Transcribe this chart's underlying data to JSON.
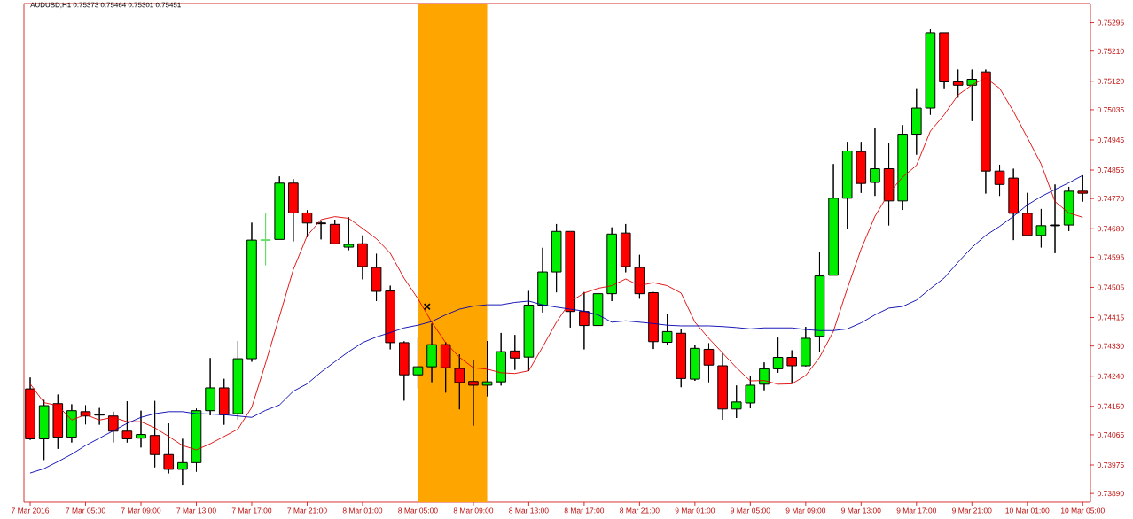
{
  "chart_data": {
    "type": "candlestick",
    "title": "AUDUSD,H1  0.75373 0.75464 0.75301 0.75451",
    "categories": [
      "7 Mar 2016",
      null,
      null,
      null,
      "7 Mar 05:00",
      null,
      null,
      null,
      "7 Mar 09:00",
      null,
      null,
      null,
      "7 Mar 13:00",
      null,
      null,
      null,
      "7 Mar 17:00",
      null,
      null,
      null,
      "7 Mar 21:00",
      null,
      null,
      null,
      "8 Mar 01:00",
      null,
      null,
      null,
      "8 Mar 05:00",
      null,
      null,
      null,
      "8 Mar 09:00",
      null,
      null,
      null,
      "8 Mar 13:00",
      null,
      null,
      null,
      "8 Mar 17:00",
      null,
      null,
      null,
      "8 Mar 21:00",
      null,
      null,
      null,
      "9 Mar 01:00",
      null,
      null,
      null,
      "9 Mar 05:00",
      null,
      null,
      null,
      "9 Mar 09:00",
      null,
      null,
      null,
      "9 Mar 13:00",
      null,
      null,
      null,
      "9 Mar 17:00",
      null,
      null,
      null,
      "9 Mar 21:00",
      null,
      null,
      null,
      "10 Mar 01:00",
      null,
      null,
      null,
      "10 Mar 05:00"
    ],
    "ohlc": [
      [
        0.74202,
        0.74236,
        0.7405,
        0.74053
      ],
      [
        0.74053,
        0.74169,
        0.7399,
        0.74152
      ],
      [
        0.74158,
        0.74185,
        0.74023,
        0.74058
      ],
      [
        0.74058,
        0.74156,
        0.74042,
        0.74137
      ],
      [
        0.74134,
        0.74153,
        0.74096,
        0.74121
      ],
      [
        0.74125,
        0.74145,
        0.74095,
        0.74125
      ],
      [
        0.74121,
        0.74134,
        0.74042,
        0.74076
      ],
      [
        0.74076,
        0.74165,
        0.74042,
        0.74053
      ],
      [
        0.74055,
        0.74137,
        0.74027,
        0.74066
      ],
      [
        0.74063,
        0.74166,
        0.73968,
        0.74006
      ],
      [
        0.74006,
        0.74099,
        0.7395,
        0.73962
      ],
      [
        0.73962,
        0.74053,
        0.73914,
        0.73982
      ],
      [
        0.73982,
        0.74143,
        0.73955,
        0.74137
      ],
      [
        0.74137,
        0.74294,
        0.74123,
        0.74205
      ],
      [
        0.74205,
        0.74232,
        0.74095,
        0.74125
      ],
      [
        0.74128,
        0.74345,
        0.7411,
        0.74292
      ],
      [
        0.74292,
        0.74698,
        0.74283,
        0.74646
      ],
      [
        0.74646,
        0.74727,
        0.74571,
        0.74646
      ],
      [
        0.74648,
        0.74836,
        0.74648,
        0.74816
      ],
      [
        0.74816,
        0.74828,
        0.74642,
        0.74727
      ],
      [
        0.74727,
        0.74735,
        0.74655,
        0.74697
      ],
      [
        0.74696,
        0.74704,
        0.74648,
        0.74696
      ],
      [
        0.74693,
        0.74707,
        0.74633,
        0.74635
      ],
      [
        0.74625,
        0.74714,
        0.74616,
        0.74633
      ],
      [
        0.74635,
        0.7466,
        0.74529,
        0.74567
      ],
      [
        0.74564,
        0.74605,
        0.74464,
        0.74493
      ],
      [
        0.74494,
        0.7451,
        0.7432,
        0.7434
      ],
      [
        0.7434,
        0.74344,
        0.74167,
        0.74244
      ],
      [
        0.74244,
        0.74355,
        0.74203,
        0.74268
      ],
      [
        0.74268,
        0.74397,
        0.74222,
        0.74334
      ],
      [
        0.74334,
        0.74342,
        0.74191,
        0.74265
      ],
      [
        0.74263,
        0.74305,
        0.74141,
        0.74221
      ],
      [
        0.74224,
        0.74287,
        0.74092,
        0.74213
      ],
      [
        0.74213,
        0.74345,
        0.7418,
        0.74223
      ],
      [
        0.74223,
        0.74369,
        0.74212,
        0.74313
      ],
      [
        0.74315,
        0.74363,
        0.74259,
        0.74294
      ],
      [
        0.74297,
        0.74494,
        0.74255,
        0.74452
      ],
      [
        0.74452,
        0.74623,
        0.7443,
        0.74551
      ],
      [
        0.74551,
        0.74694,
        0.7449,
        0.74672
      ],
      [
        0.74672,
        0.74672,
        0.74385,
        0.74433
      ],
      [
        0.74433,
        0.74491,
        0.7432,
        0.74391
      ],
      [
        0.74391,
        0.74526,
        0.74381,
        0.74486
      ],
      [
        0.74486,
        0.74684,
        0.74464,
        0.74664
      ],
      [
        0.74667,
        0.74694,
        0.7455,
        0.74567
      ],
      [
        0.74564,
        0.74602,
        0.74471,
        0.74486
      ],
      [
        0.74489,
        0.74491,
        0.74321,
        0.74343
      ],
      [
        0.74341,
        0.74426,
        0.74333,
        0.74373
      ],
      [
        0.74368,
        0.74381,
        0.74207,
        0.74233
      ],
      [
        0.74231,
        0.74334,
        0.74226,
        0.74323
      ],
      [
        0.7432,
        0.74338,
        0.74222,
        0.74273
      ],
      [
        0.74271,
        0.74309,
        0.7411,
        0.74142
      ],
      [
        0.74142,
        0.74212,
        0.74115,
        0.74163
      ],
      [
        0.7416,
        0.7424,
        0.74144,
        0.74213
      ],
      [
        0.74216,
        0.74281,
        0.74198,
        0.74262
      ],
      [
        0.74262,
        0.74355,
        0.7425,
        0.74296
      ],
      [
        0.74296,
        0.74317,
        0.74219,
        0.74271
      ],
      [
        0.74271,
        0.74387,
        0.74269,
        0.74353
      ],
      [
        0.74359,
        0.74611,
        0.74313,
        0.74539
      ],
      [
        0.74541,
        0.74873,
        0.74541,
        0.74771
      ],
      [
        0.74771,
        0.74939,
        0.74678,
        0.74912
      ],
      [
        0.7491,
        0.74939,
        0.74787,
        0.74815
      ],
      [
        0.74818,
        0.74981,
        0.74778,
        0.74859
      ],
      [
        0.74859,
        0.74934,
        0.7469,
        0.74763
      ],
      [
        0.74763,
        0.74989,
        0.74736,
        0.74962
      ],
      [
        0.74962,
        0.75099,
        0.74901,
        0.7504
      ],
      [
        0.7504,
        0.75275,
        0.7502,
        0.75265
      ],
      [
        0.75265,
        0.75265,
        0.75099,
        0.75118
      ],
      [
        0.75118,
        0.75155,
        0.75071,
        0.75108
      ],
      [
        0.75108,
        0.75155,
        0.75001,
        0.75126
      ],
      [
        0.75148,
        0.75155,
        0.74785,
        0.74852
      ],
      [
        0.74852,
        0.74871,
        0.74778,
        0.74812
      ],
      [
        0.74831,
        0.74859,
        0.74646,
        0.74726
      ],
      [
        0.74726,
        0.74787,
        0.7466,
        0.7466
      ],
      [
        0.7466,
        0.74739,
        0.74624,
        0.74689
      ],
      [
        0.7469,
        0.74812,
        0.74607,
        0.7469
      ],
      [
        0.74691,
        0.74805,
        0.74673,
        0.74792
      ],
      [
        0.74792,
        0.74839,
        0.74761,
        0.74786
      ]
    ],
    "colors": [
      "#ff0000",
      "#00ee00",
      "#ff0000",
      "#00ee00",
      "#ff0000",
      "#000000",
      "#ff0000",
      "#ff0000",
      "#00ee00",
      "#ff0000",
      "#ff0000",
      "#00ee00",
      "#00ee00",
      "#00ee00",
      "#ff0000",
      "#00ee00",
      "#00ee00",
      "#66dd66",
      "#00ee00",
      "#ff0000",
      "#ff0000",
      "#000000",
      "#ff0000",
      "#00ee00",
      "#ff0000",
      "#ff0000",
      "#ff0000",
      "#ff0000",
      "#00ee00",
      "#00ee00",
      "#ff0000",
      "#ff0000",
      "#ff0000",
      "#00ee00",
      "#00ee00",
      "#ff0000",
      "#00ee00",
      "#00ee00",
      "#00ee00",
      "#ff0000",
      "#ff0000",
      "#00ee00",
      "#00ee00",
      "#ff0000",
      "#ff0000",
      "#ff0000",
      "#00ee00",
      "#ff0000",
      "#00ee00",
      "#ff0000",
      "#ff0000",
      "#00ee00",
      "#00ee00",
      "#00ee00",
      "#00ee00",
      "#ff0000",
      "#00ee00",
      "#00ee00",
      "#00ee00",
      "#00ee00",
      "#ff0000",
      "#00ee00",
      "#ff0000",
      "#00ee00",
      "#00ee00",
      "#00ee00",
      "#ff0000",
      "#ff0000",
      "#00ee00",
      "#ff0000",
      "#ff0000",
      "#ff0000",
      "#ff0000",
      "#00ee00",
      "#000000",
      "#00ee00",
      "#ff0000"
    ],
    "series": [
      {
        "type": "line",
        "color": "#e00000",
        "values": [
          0.74217,
          0.74161,
          0.74152,
          0.74109,
          0.74125,
          0.74109,
          0.74117,
          0.74104,
          0.74104,
          0.74086,
          0.7406,
          0.74033,
          0.7402,
          0.74038,
          0.7406,
          0.74082,
          0.74147,
          0.74279,
          0.74418,
          0.74558,
          0.74659,
          0.74707,
          0.74716,
          0.74711,
          0.74681,
          0.7465,
          0.74607,
          0.74532,
          0.74471,
          0.74401,
          0.7434,
          0.74296,
          0.74265,
          0.74261,
          0.7425,
          0.74248,
          0.74256,
          0.74327,
          0.74401,
          0.74462,
          0.74488,
          0.74502,
          0.7451,
          0.7453,
          0.7451,
          0.74519,
          0.7451,
          0.74488,
          0.74401,
          0.74353,
          0.74309,
          0.74265,
          0.74226,
          0.74227,
          0.74216,
          0.74217,
          0.74242,
          0.74296,
          0.74374,
          0.74501,
          0.74619,
          0.74717,
          0.74786,
          0.74834,
          0.74869,
          0.74971,
          0.7502,
          0.75079,
          0.75109,
          0.7513,
          0.75099,
          0.7503,
          0.74952,
          0.74873,
          0.74761,
          0.74727,
          0.74714
        ]
      },
      {
        "type": "line",
        "color": "#0000b0",
        "values": [
          0.73951,
          0.73964,
          0.73985,
          0.74007,
          0.74033,
          0.74055,
          0.74077,
          0.74099,
          0.74117,
          0.74128,
          0.74134,
          0.74134,
          0.74128,
          0.74127,
          0.74125,
          0.74121,
          0.74117,
          0.74138,
          0.74154,
          0.74195,
          0.74217,
          0.74252,
          0.74283,
          0.74313,
          0.7434,
          0.74357,
          0.7437,
          0.74384,
          0.74392,
          0.74403,
          0.74423,
          0.7444,
          0.74449,
          0.74453,
          0.74453,
          0.7446,
          0.74464,
          0.74453,
          0.74446,
          0.7444,
          0.74434,
          0.74423,
          0.74401,
          0.74405,
          0.74401,
          0.74397,
          0.74392,
          0.7439,
          0.7439,
          0.7439,
          0.74388,
          0.74385,
          0.74381,
          0.74384,
          0.74384,
          0.74384,
          0.74379,
          0.74376,
          0.74376,
          0.74381,
          0.74399,
          0.74423,
          0.74443,
          0.74448,
          0.74467,
          0.74501,
          0.74533,
          0.7458,
          0.74624,
          0.7466,
          0.74687,
          0.74717,
          0.74751,
          0.74776,
          0.74797,
          0.74817,
          0.74839
        ]
      }
    ],
    "ylim": [
      0.73864,
      0.75352
    ],
    "yticks": [
      {
        "value": 0.75295,
        "label": "0.75295"
      },
      {
        "value": 0.7521,
        "label": "0.75210"
      },
      {
        "value": 0.7512,
        "label": "0.75120"
      },
      {
        "value": 0.75035,
        "label": "0.75035"
      },
      {
        "value": 0.74945,
        "label": "0.74945"
      },
      {
        "value": 0.74855,
        "label": "0.74855"
      },
      {
        "value": 0.7477,
        "label": "0.74770"
      },
      {
        "value": 0.7468,
        "label": "0.74680"
      },
      {
        "value": 0.74595,
        "label": "0.74595"
      },
      {
        "value": 0.74505,
        "label": "0.74505"
      },
      {
        "value": 0.74415,
        "label": "0.74415"
      },
      {
        "value": 0.7433,
        "label": "0.74330"
      },
      {
        "value": 0.7424,
        "label": "0.74240"
      },
      {
        "value": 0.7415,
        "label": "0.74150"
      },
      {
        "value": 0.74065,
        "label": "0.74065"
      },
      {
        "value": 0.73975,
        "label": "0.73975"
      },
      {
        "value": 0.7389,
        "label": "0.73890"
      }
    ],
    "annotations": [
      "×"
    ]
  }
}
